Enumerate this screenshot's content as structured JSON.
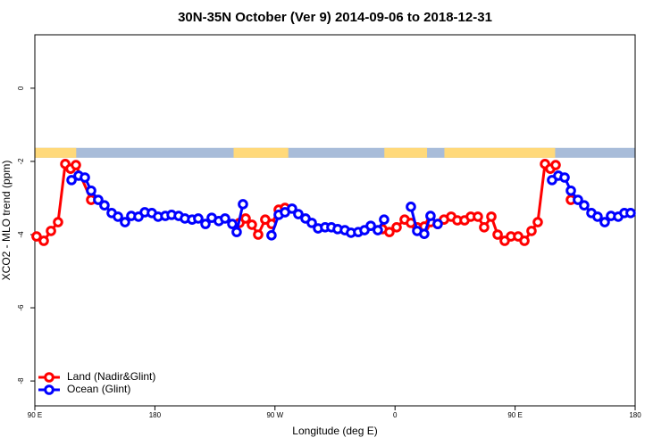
{
  "chart_data": {
    "type": "line",
    "title": "30N-35N October (Ver 9)   2014-09-06 to 2018-12-31",
    "x_label": "Longitude (deg E)",
    "y_label": "XCO2 - MLO trend (ppm)",
    "xlim": [
      90,
      540
    ],
    "ylim": [
      -8.68,
      1.46
    ],
    "xticks": [
      {
        "value": 90,
        "label": "90 E"
      },
      180,
      {
        "value": 270,
        "label": "90 W"
      },
      {
        "value": 360,
        "label": "0"
      },
      {
        "value": 450,
        "label": "90 E"
      },
      {
        "value": 540,
        "label": "180"
      }
    ],
    "yticks": [
      0,
      -2,
      -4,
      -6,
      -8
    ],
    "legend": "bottom-left",
    "mask_band_y": [
      -1.63,
      -1.9
    ],
    "land_color": "#ffd97a",
    "ocean_color": "#a8bcd9",
    "land_intervals": [
      [
        90,
        121
      ],
      [
        239,
        280
      ],
      [
        352,
        384
      ],
      [
        397,
        480
      ]
    ],
    "series": [
      {
        "name": "Land (Nadir&Glint)",
        "color": "#ff0000",
        "x": [
          91.3,
          96.7,
          102.1,
          107.4,
          112.8,
          116.8,
          120.8,
          132.2,
          null,
          243.4,
          248.0,
          252.7,
          257.4,
          262.7,
          267.5,
          272.8,
          277.5,
          null,
          350.5,
          355.8,
          361.2,
          367.2,
          371.9,
          376.6,
          382.0,
          386.7,
          392.0,
          396.7,
          402.1,
          406.7,
          412.1,
          416.8,
          422.1,
          426.8,
          432.2,
          436.9,
          442.2,
          446.9,
          452.3,
          457.0,
          462.3,
          467.0,
          472.4,
          476.4,
          480.4,
          null,
          491.8
        ],
        "values": [
          -4.05,
          -4.17,
          -3.9,
          -3.66,
          -2.07,
          -2.2,
          -2.1,
          -3.05,
          null,
          -3.68,
          -3.56,
          -3.73,
          -4.0,
          -3.59,
          -3.71,
          -3.32,
          -3.27,
          null,
          -3.85,
          -3.93,
          -3.8,
          -3.59,
          -3.68,
          -3.8,
          -3.78,
          -3.66,
          -3.71,
          -3.59,
          -3.51,
          -3.61,
          -3.61,
          -3.51,
          -3.51,
          -3.8,
          -3.51,
          -4.0,
          -4.17,
          -4.05,
          -4.05,
          -4.17,
          -3.9,
          -3.66,
          -2.07,
          -2.2,
          -2.1,
          null,
          -3.05
        ]
      },
      {
        "name": "Ocean (Glint)",
        "color": "#0000ff",
        "x": [
          117.5,
          122.8,
          127.5,
          132.2,
          137.5,
          142.2,
          147.6,
          152.3,
          157.6,
          162.3,
          167.7,
          172.4,
          177.7,
          182.4,
          187.8,
          192.5,
          197.8,
          202.5,
          207.9,
          212.5,
          217.9,
          222.6,
          227.9,
          232.6,
          238.0,
          241.3,
          246.0,
          null,
          267.4,
          272.8,
          277.5,
          282.8,
          287.5,
          292.9,
          297.6,
          302.3,
          307.6,
          312.3,
          317.0,
          322.4,
          327.0,
          332.4,
          337.1,
          341.8,
          347.1,
          351.8,
          null,
          371.9,
          376.6,
          381.9,
          386.6,
          392.0,
          null,
          477.7,
          482.4,
          487.1,
          491.8,
          497.1,
          501.8,
          507.2,
          511.8,
          517.2,
          521.9,
          527.3,
          531.9,
          536.6
        ],
        "values": [
          -2.51,
          -2.39,
          -2.44,
          -2.8,
          -3.05,
          -3.2,
          -3.41,
          -3.51,
          -3.66,
          -3.49,
          -3.51,
          -3.39,
          -3.41,
          -3.51,
          -3.49,
          -3.46,
          -3.49,
          -3.56,
          -3.59,
          -3.56,
          -3.71,
          -3.54,
          -3.63,
          -3.56,
          -3.71,
          -3.93,
          -3.17,
          null,
          -4.02,
          -3.46,
          -3.39,
          -3.29,
          -3.44,
          -3.56,
          -3.68,
          -3.83,
          -3.8,
          -3.8,
          -3.85,
          -3.88,
          -3.95,
          -3.93,
          -3.88,
          -3.76,
          -3.88,
          -3.59,
          null,
          -3.24,
          -3.9,
          -3.98,
          -3.49,
          -3.71,
          null,
          -2.51,
          -2.39,
          -2.44,
          -2.8,
          -3.05,
          -3.2,
          -3.41,
          -3.51,
          -3.66,
          -3.49,
          -3.51,
          -3.41,
          -3.41
        ]
      }
    ]
  }
}
